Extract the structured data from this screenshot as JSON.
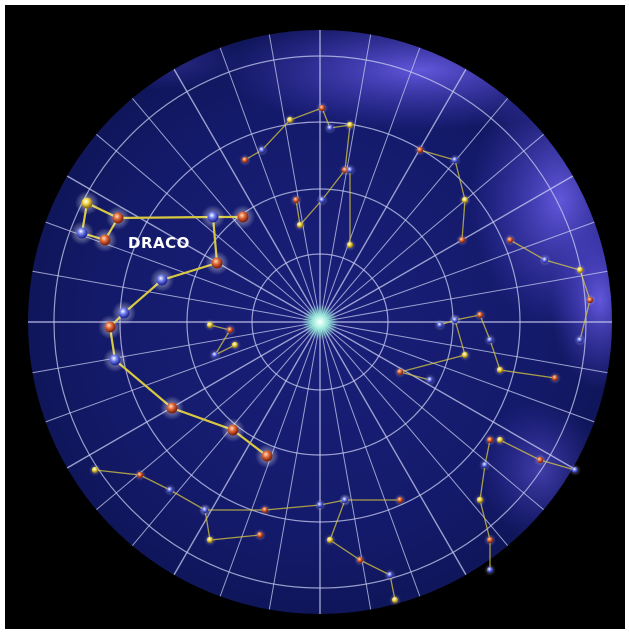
{
  "constellations": [
    {
      "label": "DRACO"
    }
  ]
}
